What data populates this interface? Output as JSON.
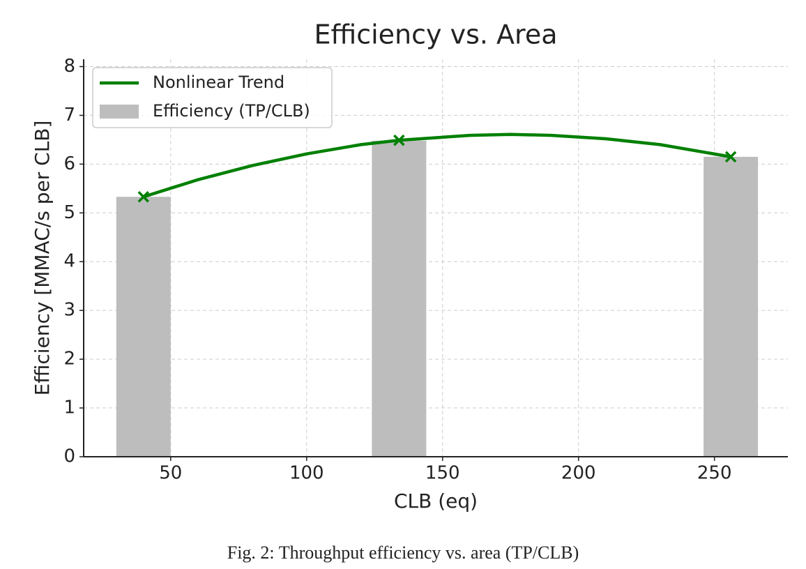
{
  "chart_data": {
    "type": "combo",
    "title": "Efficiency vs. Area",
    "xlabel": "CLB (eq)",
    "ylabel": "Efficiency [MMAC/s per CLB]",
    "caption": "Fig. 2: Throughput efficiency vs. area (TP/CLB)",
    "xlim": [
      18,
      277
    ],
    "ylim": [
      0,
      8.15
    ],
    "xticks": [
      50,
      100,
      150,
      200,
      250
    ],
    "yticks": [
      0,
      1,
      2,
      3,
      4,
      5,
      6,
      7,
      8
    ],
    "grid": true,
    "legend": "upper left",
    "series": [
      {
        "type": "line",
        "name": "Nonlinear Trend",
        "color": "#008000",
        "x": [
          40,
          60,
          80,
          100,
          120,
          134,
          160,
          175,
          190,
          210,
          230,
          256
        ],
        "values": [
          5.33,
          5.68,
          5.97,
          6.21,
          6.4,
          6.49,
          6.59,
          6.61,
          6.59,
          6.52,
          6.4,
          6.15
        ],
        "markers": {
          "x": [
            40,
            134,
            256
          ],
          "values": [
            5.33,
            6.49,
            6.15
          ]
        }
      },
      {
        "type": "bar",
        "name": "Efficiency (TP/CLB)",
        "color": "#bdbdbd",
        "x": [
          40,
          134,
          256
        ],
        "values": [
          5.33,
          6.48,
          6.15
        ],
        "bar_width": 20
      }
    ]
  }
}
